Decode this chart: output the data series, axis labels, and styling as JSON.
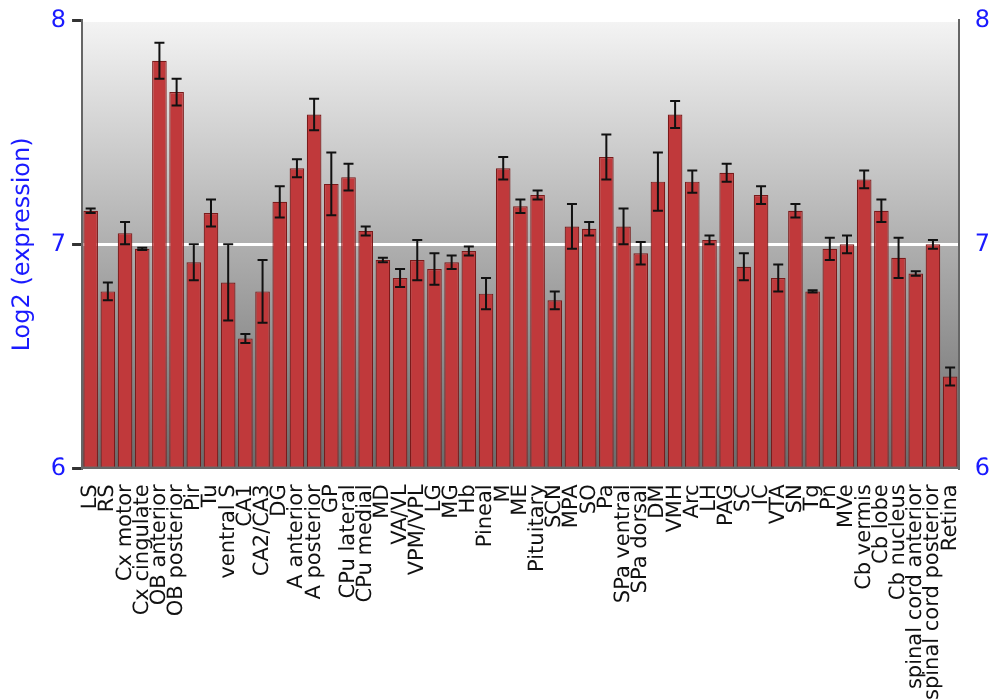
{
  "chart_data": {
    "type": "bar",
    "ylabel": "Log2 (expression)",
    "categories": [
      "LS",
      "RS",
      "Cx motor",
      "Cx cingulate",
      "OB anterior",
      "OB posterior",
      "Pir",
      "Tu",
      "ventral S",
      "CA1",
      "CA2/CA3",
      "DG",
      "A anterior",
      "A posterior",
      "GP",
      "CPu lateral",
      "CPu medial",
      "MD",
      "VA/VL",
      "VPM/VPL",
      "LG",
      "MG",
      "Hb",
      "Pineal",
      "M",
      "ME",
      "Pituitary",
      "SCN",
      "MPA",
      "SO",
      "Pa",
      "SPa ventral",
      "SPa dorsal",
      "DM",
      "VMH",
      "Arc",
      "LH",
      "PAG",
      "SC",
      "IC",
      "VTA",
      "SN",
      "Tg",
      "Pn",
      "MVe",
      "Cb vermis",
      "Cb lobe",
      "Cb nucleus",
      "spinal cord anterior",
      "spinal cord posterior",
      "Retina"
    ],
    "values": [
      7.15,
      6.79,
      7.05,
      6.98,
      7.82,
      7.68,
      6.92,
      7.14,
      6.83,
      6.58,
      6.79,
      7.19,
      7.34,
      7.58,
      7.27,
      7.3,
      7.06,
      6.93,
      6.85,
      6.93,
      6.89,
      6.92,
      6.97,
      6.78,
      7.34,
      7.17,
      7.22,
      6.75,
      7.08,
      7.07,
      7.39,
      7.08,
      6.96,
      7.28,
      7.58,
      7.28,
      7.02,
      7.32,
      6.9,
      7.22,
      6.85,
      7.15,
      6.79,
      6.98,
      7.0,
      7.29,
      7.15,
      6.94,
      6.87,
      7.0,
      6.41
    ],
    "errors": [
      0.01,
      0.04,
      0.05,
      0.005,
      0.08,
      0.06,
      0.08,
      0.06,
      0.17,
      0.02,
      0.14,
      0.07,
      0.04,
      0.07,
      0.14,
      0.06,
      0.02,
      0.01,
      0.04,
      0.09,
      0.07,
      0.03,
      0.02,
      0.07,
      0.05,
      0.03,
      0.02,
      0.04,
      0.1,
      0.03,
      0.1,
      0.08,
      0.05,
      0.13,
      0.06,
      0.05,
      0.02,
      0.04,
      0.06,
      0.04,
      0.06,
      0.03,
      0.005,
      0.05,
      0.04,
      0.04,
      0.05,
      0.09,
      0.01,
      0.02,
      0.04
    ],
    "color": "#c0393b",
    "ylim": [
      6,
      8
    ],
    "yticks": [
      6,
      7,
      8
    ],
    "y2lim": [
      6,
      8
    ],
    "y2ticks": [
      6,
      7,
      8
    ],
    "grid": "y",
    "legend": false
  }
}
